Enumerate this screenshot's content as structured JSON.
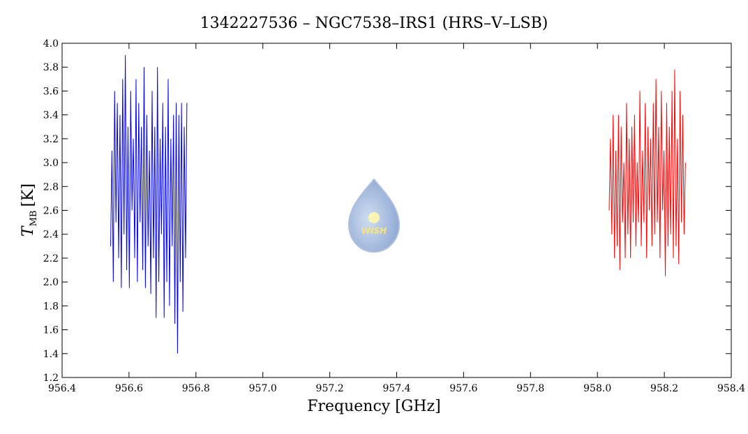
{
  "chart_data": {
    "type": "line",
    "title": "1342227536 – NGC7538–IRS1 (HRS–V–LSB)",
    "x_label": "Frequency [GHz]",
    "y_label": "T",
    "y_label_sub": "MB",
    "y_label_unit": "[K]",
    "logo_text": "WISH",
    "xlim": [
      956.4,
      958.4
    ],
    "xticks": [
      956.4,
      956.6,
      956.8,
      {
        "value": 957.0,
        "label": "957.0"
      },
      957.2,
      957.4,
      957.6,
      957.8,
      {
        "value": 958.0,
        "label": "958.0"
      },
      958.2,
      958.4
    ],
    "ylim": [
      1.2,
      4.0
    ],
    "yticks": [
      1.2,
      1.4,
      1.6,
      1.8,
      {
        "value": 2.0,
        "label": "2.0"
      },
      2.2,
      2.4,
      2.6,
      2.8,
      {
        "value": 3.0,
        "label": "3.0"
      },
      3.2,
      3.4,
      3.6,
      3.8,
      {
        "value": 4.0,
        "label": "4.0"
      }
    ],
    "grid": false,
    "series": [
      {
        "color": "#0000ff",
        "x": [
          956.545,
          956.549,
          956.553,
          956.557,
          956.561,
          956.565,
          956.569,
          956.573,
          956.577,
          956.581,
          956.585,
          956.589,
          956.593,
          956.597,
          956.601,
          956.605,
          956.609,
          956.613,
          956.617,
          956.621,
          956.625,
          956.629,
          956.633,
          956.637,
          956.641,
          956.645,
          956.649,
          956.653,
          956.657,
          956.661,
          956.665,
          956.669,
          956.673,
          956.677,
          956.681,
          956.685,
          956.689,
          956.693,
          956.697,
          956.701,
          956.705,
          956.709,
          956.713,
          956.717,
          956.721,
          956.725,
          956.729,
          956.733,
          956.737,
          956.741,
          956.745,
          956.749,
          956.753,
          956.757,
          956.761,
          956.765,
          956.769,
          956.773
        ],
        "values": [
          2.3,
          3.1,
          2.0,
          3.6,
          2.5,
          3.5,
          2.2,
          3.4,
          1.95,
          3.7,
          2.4,
          3.9,
          2.1,
          3.3,
          1.95,
          3.6,
          2.6,
          3.2,
          2.2,
          3.7,
          2.0,
          3.5,
          2.5,
          3.3,
          2.1,
          3.8,
          1.95,
          3.4,
          2.3,
          3.1,
          1.9,
          3.6,
          2.2,
          3.3,
          1.7,
          3.8,
          2.0,
          3.2,
          2.4,
          3.5,
          1.7,
          3.3,
          2.0,
          3.7,
          1.8,
          3.2,
          2.3,
          3.4,
          1.65,
          3.5,
          1.4,
          3.4,
          2.0,
          3.5,
          1.75,
          3.3,
          2.2,
          3.5
        ]
      },
      {
        "color": "#ff0000",
        "x": [
          958.035,
          958.039,
          958.043,
          958.047,
          958.051,
          958.055,
          958.059,
          958.063,
          958.067,
          958.071,
          958.075,
          958.079,
          958.083,
          958.087,
          958.091,
          958.095,
          958.099,
          958.103,
          958.107,
          958.111,
          958.115,
          958.119,
          958.123,
          958.127,
          958.131,
          958.135,
          958.139,
          958.143,
          958.147,
          958.151,
          958.155,
          958.159,
          958.163,
          958.167,
          958.171,
          958.175,
          958.179,
          958.183,
          958.187,
          958.191,
          958.195,
          958.199,
          958.203,
          958.207,
          958.211,
          958.215,
          958.219,
          958.223,
          958.227,
          958.231,
          958.235,
          958.239,
          958.243,
          958.247,
          958.251,
          958.255,
          958.259,
          958.263
        ],
        "values": [
          2.6,
          3.2,
          2.4,
          3.4,
          2.2,
          3.1,
          2.3,
          3.4,
          2.1,
          3.3,
          2.5,
          3.0,
          2.2,
          3.5,
          2.4,
          3.2,
          2.2,
          3.3,
          2.5,
          3.4,
          2.3,
          3.0,
          2.5,
          3.6,
          2.3,
          3.1,
          2.5,
          3.5,
          2.2,
          3.3,
          2.6,
          3.2,
          2.3,
          3.5,
          2.4,
          3.7,
          2.5,
          3.3,
          2.2,
          3.6,
          2.6,
          3.1,
          2.05,
          3.5,
          2.3,
          3.3,
          2.4,
          3.6,
          2.2,
          3.78,
          2.3,
          3.2,
          2.15,
          3.6,
          2.5,
          3.4,
          2.4,
          3.0
        ]
      }
    ]
  }
}
